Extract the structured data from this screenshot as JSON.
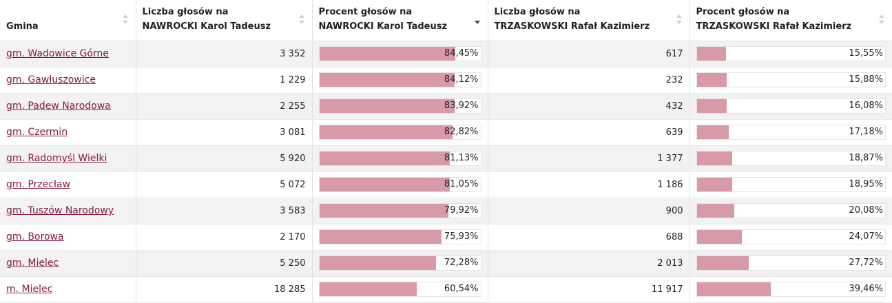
{
  "headers": [
    {
      "line1": "Gmina",
      "line2": ""
    },
    {
      "line1": "Liczba głosów na",
      "line2": "NAWROCKI Karol Tadeusz"
    },
    {
      "line1": "Procent głosów na",
      "line2": "NAWROCKI Karol Tadeusz"
    },
    {
      "line1": "Liczba głosów na",
      "line2": "TRZASKOWSKI Rafał Kazimierz"
    },
    {
      "line1": "Procent głosów na",
      "line2": "TRZASKOWSKI Rafał Kazimierz"
    }
  ],
  "sort": {
    "column": 2,
    "direction": "desc"
  },
  "rows": [
    {
      "gmina": "gm. Wadowice Górne",
      "nawrocki_votes": "3 352",
      "nawrocki_pct": 84.45,
      "nawrocki_pct_label": "84,45%",
      "trzaskowski_votes": "617",
      "trzaskowski_pct": 15.55,
      "trzaskowski_pct_label": "15,55%"
    },
    {
      "gmina": "gm. Gawłuszowice",
      "nawrocki_votes": "1 229",
      "nawrocki_pct": 84.12,
      "nawrocki_pct_label": "84,12%",
      "trzaskowski_votes": "232",
      "trzaskowski_pct": 15.88,
      "trzaskowski_pct_label": "15,88%"
    },
    {
      "gmina": "gm. Padew Narodowa",
      "nawrocki_votes": "2 255",
      "nawrocki_pct": 83.92,
      "nawrocki_pct_label": "83,92%",
      "trzaskowski_votes": "432",
      "trzaskowski_pct": 16.08,
      "trzaskowski_pct_label": "16,08%"
    },
    {
      "gmina": "gm. Czermin",
      "nawrocki_votes": "3 081",
      "nawrocki_pct": 82.82,
      "nawrocki_pct_label": "82,82%",
      "trzaskowski_votes": "639",
      "trzaskowski_pct": 17.18,
      "trzaskowski_pct_label": "17,18%"
    },
    {
      "gmina": "gm. Radomyśl Wielki",
      "nawrocki_votes": "5 920",
      "nawrocki_pct": 81.13,
      "nawrocki_pct_label": "81,13%",
      "trzaskowski_votes": "1 377",
      "trzaskowski_pct": 18.87,
      "trzaskowski_pct_label": "18,87%"
    },
    {
      "gmina": "gm. Przecław",
      "nawrocki_votes": "5 072",
      "nawrocki_pct": 81.05,
      "nawrocki_pct_label": "81,05%",
      "trzaskowski_votes": "1 186",
      "trzaskowski_pct": 18.95,
      "trzaskowski_pct_label": "18,95%"
    },
    {
      "gmina": "gm. Tuszów Narodowy",
      "nawrocki_votes": "3 583",
      "nawrocki_pct": 79.92,
      "nawrocki_pct_label": "79,92%",
      "trzaskowski_votes": "900",
      "trzaskowski_pct": 20.08,
      "trzaskowski_pct_label": "20,08%"
    },
    {
      "gmina": "gm. Borowa",
      "nawrocki_votes": "2 170",
      "nawrocki_pct": 75.93,
      "nawrocki_pct_label": "75,93%",
      "trzaskowski_votes": "688",
      "trzaskowski_pct": 24.07,
      "trzaskowski_pct_label": "24,07%"
    },
    {
      "gmina": "gm. Mielec",
      "nawrocki_votes": "5 250",
      "nawrocki_pct": 72.28,
      "nawrocki_pct_label": "72,28%",
      "trzaskowski_votes": "2 013",
      "trzaskowski_pct": 27.72,
      "trzaskowski_pct_label": "27,72%"
    },
    {
      "gmina": "m. Mielec",
      "nawrocki_votes": "18 285",
      "nawrocki_pct": 60.54,
      "nawrocki_pct_label": "60,54%",
      "trzaskowski_votes": "11 917",
      "trzaskowski_pct": 39.46,
      "trzaskowski_pct_label": "39,46%"
    }
  ],
  "colors": {
    "bar_fill": "#d99aa8",
    "link": "#8b1a3a"
  }
}
